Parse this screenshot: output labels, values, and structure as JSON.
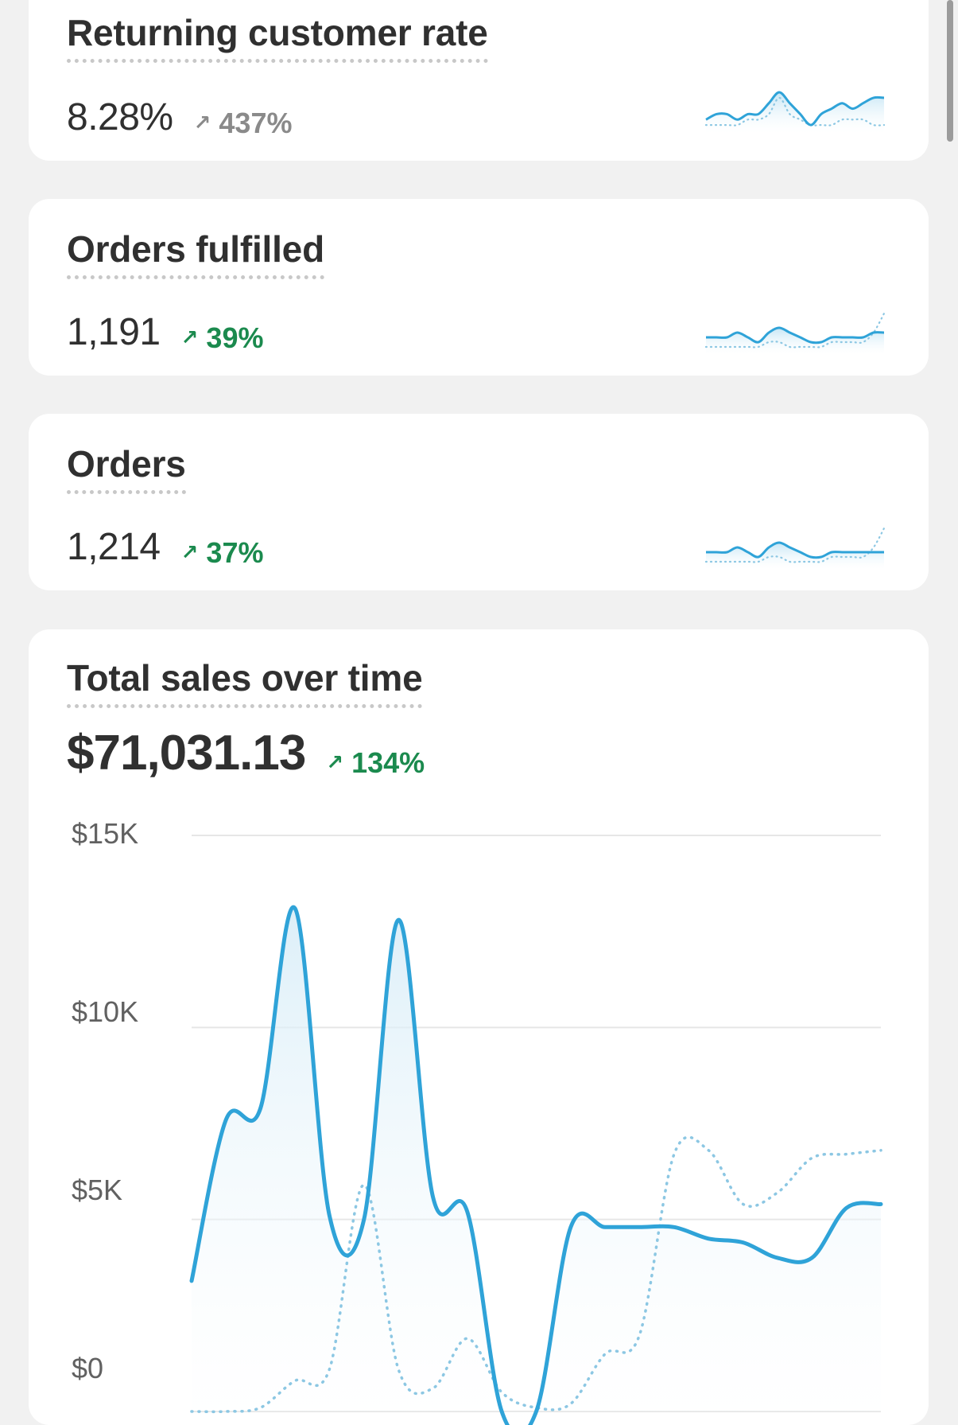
{
  "cards": [
    {
      "title": "Returning customer rate",
      "value": "8.28%",
      "change": "437%",
      "change_color": "#8a8a8a",
      "arrow_icon": "arrow-up-right-icon",
      "sparkline": {
        "current": [
          2,
          3,
          3,
          2,
          3,
          3,
          5,
          7,
          5,
          3,
          1,
          3,
          4,
          5,
          4,
          5,
          6,
          6
        ],
        "previous": [
          1,
          1,
          1,
          1,
          2,
          2,
          3,
          6,
          3,
          2,
          1,
          1,
          1,
          2,
          2,
          2,
          1,
          1
        ]
      }
    },
    {
      "title": "Orders fulfilled",
      "value": "1,191",
      "change": "39%",
      "change_color": "#1b8a4e",
      "arrow_icon": "arrow-up-right-icon",
      "sparkline": {
        "current": [
          3,
          3,
          3,
          4,
          3,
          2,
          4,
          5,
          4,
          3,
          2,
          2,
          3,
          3,
          3,
          3,
          4,
          4
        ],
        "previous": [
          1,
          1,
          1,
          1,
          1,
          1,
          2,
          2,
          1,
          1,
          1,
          1,
          2,
          2,
          2,
          2,
          4,
          8
        ]
      }
    },
    {
      "title": "Orders",
      "value": "1,214",
      "change": "37%",
      "change_color": "#1b8a4e",
      "arrow_icon": "arrow-up-right-icon",
      "sparkline": {
        "current": [
          3,
          3,
          3,
          4,
          3,
          2,
          4,
          5,
          4,
          3,
          2,
          2,
          3,
          3,
          3,
          3,
          3,
          3
        ],
        "previous": [
          1,
          1,
          1,
          1,
          1,
          1,
          2,
          2,
          1,
          1,
          1,
          1,
          2,
          2,
          2,
          2,
          4,
          8
        ]
      }
    }
  ],
  "sales": {
    "title": "Total sales over time",
    "value": "$71,031.13",
    "change": "134%",
    "change_color": "#1b8a4e",
    "arrow_icon": "arrow-up-right-icon"
  },
  "chart_data": {
    "type": "line",
    "title": "Total sales over time",
    "yticks": [
      "$15K",
      "$10K",
      "$5K",
      "$0"
    ],
    "ylim": [
      0,
      15000
    ],
    "x": [
      0,
      1,
      2,
      3,
      4,
      5,
      6,
      7,
      8,
      9,
      10,
      11,
      12,
      13,
      14,
      15,
      16,
      17,
      18,
      19,
      20
    ],
    "series": [
      {
        "style": "solid",
        "color": "#2fa3d8",
        "values": [
          3400,
          7600,
          7900,
          13100,
          5100,
          5000,
          12800,
          5600,
          5200,
          0,
          0,
          4800,
          4800,
          4800,
          4800,
          4500,
          4400,
          4000,
          4000,
          5300,
          5400
        ]
      },
      {
        "style": "dotted",
        "color": "#8cc7e3",
        "values": [
          0,
          0,
          100,
          800,
          1100,
          5900,
          1100,
          600,
          1900,
          500,
          100,
          200,
          1500,
          2000,
          6700,
          6800,
          5400,
          5700,
          6600,
          6700,
          6800
        ]
      }
    ],
    "grid": true
  }
}
